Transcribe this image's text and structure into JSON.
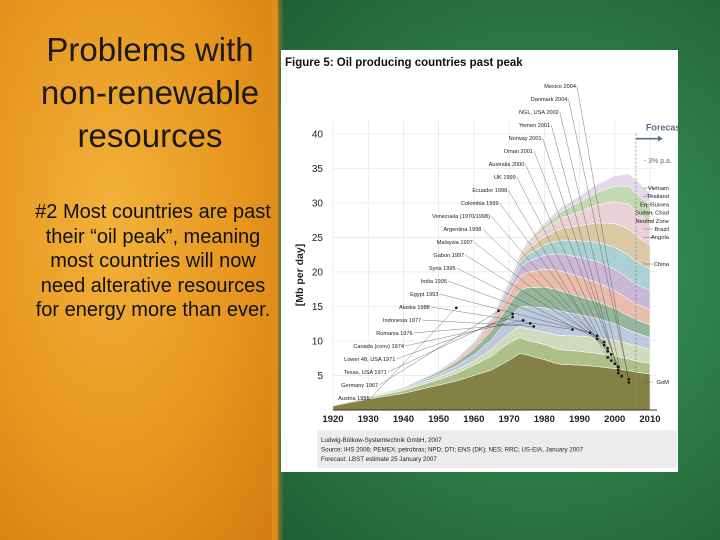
{
  "slide": {
    "title": "Problems with non-renewable resources",
    "body": "#2 Most countries are past their “oil peak”, meaning most countries will now need alterative resources for energy more than ever."
  },
  "chart_data": {
    "type": "area",
    "title": "Figure 5: Oil producing countries past peak",
    "ylabel": "[Mb per day]",
    "xlabel": "",
    "xlim": [
      1920,
      2012
    ],
    "ylim": [
      0,
      42
    ],
    "x_ticks": [
      1920,
      1930,
      1940,
      1950,
      1960,
      1970,
      1980,
      1990,
      2000,
      2010
    ],
    "y_ticks": [
      5,
      10,
      15,
      20,
      25,
      30,
      35,
      40
    ],
    "grid": true,
    "x": [
      1920,
      1930,
      1940,
      1950,
      1955,
      1960,
      1965,
      1970,
      1973,
      1975,
      1980,
      1983,
      1985,
      1990,
      1995,
      2000,
      2004,
      2006,
      2010
    ],
    "series": [
      {
        "values": [
          0.6,
          1.6,
          2.4,
          3.6,
          4.2,
          5.0,
          5.8,
          7.2,
          8.2,
          8.0,
          7.3,
          6.8,
          6.6,
          6.5,
          6.3,
          6.0,
          5.7,
          5.5,
          5.2
        ],
        "color": "#7d7a3c"
      },
      {
        "values": [
          0.1,
          0.2,
          0.4,
          0.8,
          1.1,
          1.5,
          2.0,
          2.5,
          2.3,
          2.1,
          2.2,
          2.1,
          2.1,
          2.0,
          1.9,
          1.8,
          1.7,
          1.6,
          1.5
        ],
        "color": "#a9bd83"
      },
      {
        "values": [
          0.0,
          0.1,
          0.2,
          0.4,
          0.5,
          0.6,
          1.0,
          1.4,
          1.6,
          1.7,
          1.8,
          2.0,
          2.1,
          2.2,
          2.3,
          2.3,
          2.2,
          2.2,
          2.1
        ],
        "color": "#cfd8b8"
      },
      {
        "values": [
          0.0,
          0.1,
          0.2,
          0.4,
          0.6,
          0.9,
          1.4,
          2.2,
          2.8,
          3.2,
          3.5,
          3.6,
          3.5,
          3.1,
          2.8,
          2.4,
          2.0,
          1.9,
          1.7
        ],
        "color": "#b9c6db"
      },
      {
        "values": [
          0.0,
          0.0,
          0.1,
          0.3,
          0.5,
          0.8,
          1.3,
          2.0,
          2.4,
          2.7,
          3.0,
          3.0,
          2.9,
          2.6,
          2.4,
          2.2,
          2.0,
          1.9,
          1.8
        ],
        "color": "#8fb197"
      },
      {
        "values": [
          0.0,
          0.0,
          0.0,
          0.2,
          0.3,
          0.5,
          0.9,
          1.5,
          2.0,
          2.2,
          2.6,
          2.8,
          2.9,
          2.9,
          2.8,
          2.6,
          2.4,
          2.3,
          2.2
        ],
        "color": "#e7b9a6"
      },
      {
        "values": [
          0.0,
          0.0,
          0.0,
          0.1,
          0.2,
          0.3,
          0.5,
          0.9,
          1.3,
          1.5,
          2.0,
          2.3,
          2.5,
          2.8,
          3.0,
          3.1,
          3.0,
          2.9,
          2.8
        ],
        "color": "#c8b3d4"
      },
      {
        "values": [
          0.0,
          0.0,
          0.0,
          0.0,
          0.1,
          0.2,
          0.3,
          0.5,
          0.8,
          1.0,
          1.5,
          1.8,
          2.0,
          2.4,
          2.8,
          3.2,
          3.4,
          3.3,
          3.1
        ],
        "color": "#a6cfd0"
      },
      {
        "values": [
          0.0,
          0.0,
          0.0,
          0.0,
          0.0,
          0.1,
          0.2,
          0.4,
          0.6,
          0.8,
          1.2,
          1.5,
          1.7,
          2.2,
          2.8,
          3.4,
          3.8,
          3.7,
          3.4
        ],
        "color": "#d8c6a0"
      },
      {
        "values": [
          0.0,
          0.0,
          0.0,
          0.0,
          0.0,
          0.0,
          0.1,
          0.2,
          0.4,
          0.6,
          1.0,
          1.3,
          1.5,
          2.0,
          2.6,
          3.2,
          3.6,
          3.5,
          3.3
        ],
        "color": "#e9cfd6"
      },
      {
        "values": [
          0.0,
          0.0,
          0.0,
          0.0,
          0.0,
          0.0,
          0.0,
          0.1,
          0.2,
          0.3,
          0.6,
          0.8,
          1.0,
          1.4,
          1.8,
          2.2,
          2.6,
          2.6,
          2.5
        ],
        "color": "#c0d7ad"
      },
      {
        "values": [
          0.0,
          0.0,
          0.0,
          0.0,
          0.0,
          0.0,
          0.0,
          0.0,
          0.1,
          0.2,
          0.4,
          0.5,
          0.6,
          0.9,
          1.2,
          1.5,
          1.8,
          1.9,
          1.9
        ],
        "color": "#e3d6e9"
      }
    ],
    "forecast_label": "Forecast",
    "forecast_start": 2006,
    "growth_label": "- 3% p.a.",
    "annotations_left": [
      "Mexico 2004",
      "Danmark 2004",
      "NGL, USA 2002",
      "Yemen 2001",
      "Norway 2001",
      "Oman 2001",
      "Australia 2000",
      "UK 1999",
      "Ecuador 1998",
      "Colombia 1999",
      "Venezuela (1970/1998)",
      "Argentina 1998",
      "Malaysia 1997",
      "Gabon 1997",
      "Syria 1995",
      "India 1995",
      "Egypt 1993",
      "Alaska 1988",
      "Indonesia 1977",
      "Romania 1976",
      "Canada (conv) 1974",
      "Lower 48, USA 1971",
      "Texas, USA 1971",
      "Germany 1967",
      "Austria 1955"
    ],
    "annotations_right": [
      "Vietnam",
      "Thailand",
      "Eq. Guinea",
      "Sudan, Chad",
      "Neutral Zone",
      "Brazil",
      "Angola",
      "China",
      "GoM"
    ],
    "source": [
      "Ludwig-Bölkow-Systemtechnik GmbH, 2007",
      "Source: IHS 2006; PEMEX; petrobras; NPD; DTI; ENS (DK); NES; RRC; US-EIA, January 2007",
      "Forecast: LBST estimate 25 January 2007"
    ]
  }
}
